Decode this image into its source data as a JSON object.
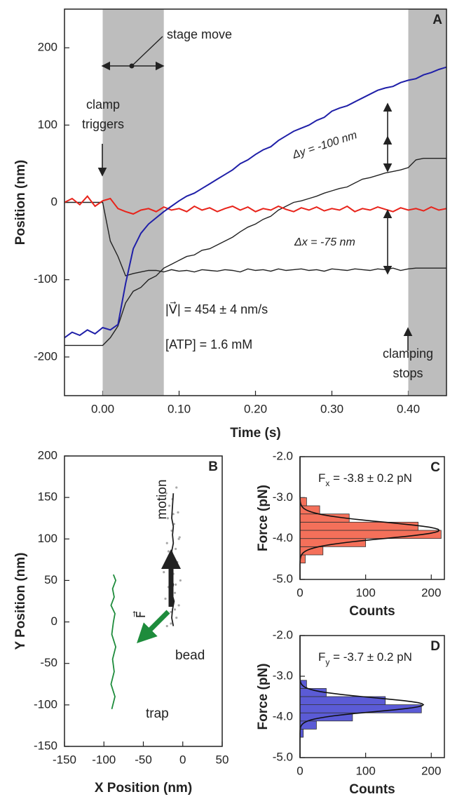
{
  "chart_data": [
    {
      "type": "line",
      "panel_label": "A",
      "xlabel": "Time (s)",
      "ylabel": "Position (nm)",
      "xlim": [
        -0.05,
        0.45
      ],
      "ylim": [
        -250,
        250
      ],
      "xticks": [
        {
          "value": 0,
          "label": "0.00"
        },
        {
          "value": 0.1,
          "label": "0.10"
        },
        {
          "value": 0.2,
          "label": "0.20"
        },
        {
          "value": 0.3,
          "label": "0.30"
        },
        {
          "value": 0.4,
          "label": "0.40"
        }
      ],
      "yticks": [
        -200,
        -100,
        0,
        100,
        200
      ],
      "shaded_regions": [
        [
          0,
          0.08
        ],
        [
          0.4,
          0.45
        ]
      ],
      "shade_color": "#bdbdbd",
      "x": [
        -0.05,
        -0.04,
        -0.03,
        -0.02,
        -0.01,
        0,
        0.01,
        0.02,
        0.03,
        0.04,
        0.05,
        0.06,
        0.07,
        0.08,
        0.09,
        0.1,
        0.11,
        0.12,
        0.13,
        0.14,
        0.15,
        0.16,
        0.17,
        0.18,
        0.19,
        0.2,
        0.21,
        0.22,
        0.23,
        0.24,
        0.25,
        0.26,
        0.27,
        0.28,
        0.29,
        0.3,
        0.31,
        0.32,
        0.33,
        0.34,
        0.35,
        0.36,
        0.37,
        0.38,
        0.39,
        0.4,
        0.41,
        0.42,
        0.43,
        0.44,
        0.45
      ],
      "series": [
        {
          "color": "#222222",
          "values": [
            -185,
            -185,
            -185,
            -185,
            -185,
            -185,
            -175,
            -160,
            -130,
            -115,
            -110,
            -100,
            -95,
            -85,
            -80,
            -75,
            -70,
            -68,
            -62,
            -60,
            -55,
            -50,
            -45,
            -38,
            -32,
            -28,
            -22,
            -18,
            -10,
            -5,
            0,
            2,
            5,
            8,
            12,
            15,
            18,
            20,
            25,
            30,
            32,
            35,
            38,
            40,
            42,
            45,
            55,
            57,
            57,
            57,
            57
          ]
        },
        {
          "color": "#222222",
          "values": [
            0,
            0,
            0,
            0,
            0,
            0,
            -50,
            -70,
            -95,
            -92,
            -90,
            -88,
            -88,
            -90,
            -87,
            -89,
            -88,
            -90,
            -87,
            -88,
            -89,
            -87,
            -88,
            -90,
            -86,
            -88,
            -87,
            -89,
            -86,
            -88,
            -87,
            -86,
            -88,
            -87,
            -89,
            -86,
            -87,
            -88,
            -86,
            -87,
            -88,
            -86,
            -87,
            -85,
            -88,
            -86,
            -85,
            -85,
            -85,
            -85,
            -85
          ]
        },
        {
          "color": "#e8231a",
          "values": [
            0,
            5,
            -3,
            8,
            -5,
            2,
            5,
            -8,
            -12,
            -15,
            -10,
            -8,
            -12,
            -6,
            -10,
            -8,
            -12,
            -5,
            -10,
            -7,
            -12,
            -8,
            -5,
            -10,
            -6,
            -12,
            -8,
            -10,
            -5,
            -9,
            -12,
            -7,
            -10,
            -6,
            -11,
            -8,
            -10,
            -5,
            -12,
            -8,
            -10,
            -6,
            -9,
            -12,
            -7,
            -10,
            -8,
            -11,
            -6,
            -10,
            -8
          ]
        },
        {
          "color": "#1f1fa8",
          "values": [
            -175,
            -168,
            -172,
            -165,
            -170,
            -162,
            -165,
            -158,
            -105,
            -60,
            -40,
            -28,
            -20,
            -12,
            -5,
            2,
            8,
            12,
            18,
            24,
            30,
            36,
            42,
            50,
            55,
            62,
            68,
            72,
            80,
            86,
            92,
            96,
            100,
            106,
            110,
            118,
            122,
            125,
            130,
            135,
            140,
            145,
            148,
            150,
            155,
            158,
            160,
            165,
            168,
            172,
            175
          ]
        }
      ],
      "annotations": [
        "stage move",
        "clamp triggers",
        "Δy = -100 nm",
        "Δx = -75 nm",
        "|V⃗| = 454 ± 4 nm/s",
        "[ATP] = 1.6 mM",
        "clamping stops"
      ]
    },
    {
      "type": "scatter",
      "panel_label": "B",
      "xlabel": "X Position (nm)",
      "ylabel": "Y Position (nm)",
      "xlim": [
        -150,
        50
      ],
      "ylim": [
        -150,
        200
      ],
      "xticks": [
        -150,
        -100,
        -50,
        0,
        50
      ],
      "yticks": [
        -150,
        -100,
        -50,
        0,
        50,
        100,
        150,
        200
      ],
      "series": [
        {
          "style": "points",
          "color": "#a8a8a8",
          "x": [
            -20,
            -8,
            -15,
            -5,
            -22,
            -10,
            -18,
            -3,
            -12,
            -25,
            -7,
            -16,
            -9,
            -20,
            -4,
            -14,
            -11,
            -19,
            -6,
            -17,
            -13,
            -21,
            -8,
            -15,
            -10,
            -24,
            -5,
            -12,
            -18,
            -9
          ],
          "values": [
            -5,
            5,
            12,
            20,
            28,
            35,
            42,
            50,
            58,
            65,
            72,
            80,
            88,
            95,
            102,
            110,
            118,
            125,
            132,
            140,
            148,
            155,
            162,
            -2,
            15,
            60,
            100,
            130,
            85,
            45
          ]
        },
        {
          "name": "bead",
          "style": "line",
          "color": "#222222",
          "x": [
            -12,
            -14,
            -13,
            -11,
            -14,
            -12,
            -15,
            -13,
            -11,
            -14,
            -12,
            -13,
            -12,
            -14,
            -13,
            -12
          ],
          "values": [
            -5,
            5,
            15,
            25,
            35,
            45,
            55,
            65,
            75,
            85,
            95,
            105,
            115,
            125,
            140,
            155
          ]
        },
        {
          "name": "trap",
          "style": "line",
          "color": "#1e8c3c",
          "x": [
            -90,
            -86,
            -91,
            -87,
            -89,
            -85,
            -90,
            -88,
            -86,
            -91,
            -87,
            -89,
            -85,
            -88
          ],
          "values": [
            -105,
            -90,
            -75,
            -60,
            -45,
            -30,
            -15,
            0,
            10,
            20,
            30,
            40,
            50,
            57
          ]
        }
      ],
      "annotations": [
        "motion",
        "F⃗"
      ]
    },
    {
      "type": "histogram",
      "panel_label": "C",
      "xlabel": "Counts",
      "ylabel": "Force (pN)",
      "xlim": [
        0,
        220
      ],
      "ylim": [
        -5,
        -2
      ],
      "xticks": [
        0,
        100,
        200
      ],
      "yticks": [
        {
          "value": -5,
          "label": "-5.0"
        },
        {
          "value": -4,
          "label": "-4.0"
        },
        {
          "value": -3,
          "label": "-3.0"
        },
        {
          "value": -2,
          "label": "-2.0"
        }
      ],
      "bins": [
        -4.6,
        -4.4,
        -4.2,
        -4.0,
        -3.8,
        -3.6,
        -3.4,
        -3.2,
        -3.0
      ],
      "values": [
        8,
        35,
        100,
        215,
        180,
        75,
        30,
        10
      ],
      "color": "#f4705a",
      "fit": {
        "mean": -3.8,
        "sd": 0.2,
        "peak": 212
      },
      "fit_label": [
        "F",
        "x",
        " = -3.8 ± 0.2 pN"
      ]
    },
    {
      "type": "histogram",
      "panel_label": "D",
      "xlabel": "Counts",
      "ylabel": "Force (pN)",
      "xlim": [
        0,
        220
      ],
      "ylim": [
        -5,
        -2
      ],
      "xticks": [
        0,
        100,
        200
      ],
      "yticks": [
        {
          "value": -5,
          "label": "-5.0"
        },
        {
          "value": -4,
          "label": "-4.0"
        },
        {
          "value": -3,
          "label": "-3.0"
        },
        {
          "value": -2,
          "label": "-2.0"
        }
      ],
      "bins": [
        -4.5,
        -4.3,
        -4.1,
        -3.9,
        -3.7,
        -3.5,
        -3.3,
        -3.1
      ],
      "values": [
        5,
        25,
        80,
        185,
        130,
        40,
        10
      ],
      "color": "#5b5bd6",
      "fit": {
        "mean": -3.7,
        "sd": 0.17,
        "peak": 188
      },
      "fit_label": [
        "F",
        "y",
        " = -3.7 ± 0.2 pN"
      ]
    }
  ]
}
